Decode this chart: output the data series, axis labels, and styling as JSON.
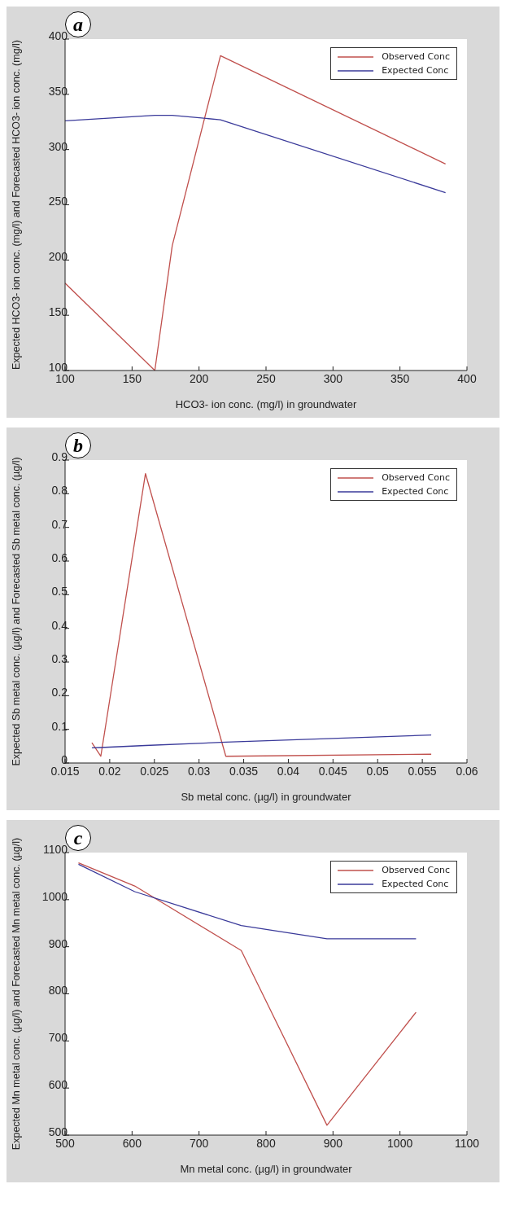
{
  "chart_data": [
    {
      "type": "line",
      "annotations": [
        "a"
      ],
      "xlabel": "HCO3- ion conc. (mg/l) in groundwater",
      "ylabel": "Expected HCO3- ion conc. (mg/l) and Forecasted HCO3- ion conc. (mg/l)",
      "xlim": [
        100,
        400
      ],
      "xticks": [
        100,
        150,
        200,
        250,
        300,
        350,
        400
      ],
      "ylim": [
        100,
        400
      ],
      "yticks": [
        100,
        150,
        200,
        250,
        300,
        350,
        400
      ],
      "legend": "top right",
      "series": [
        {
          "name": "Observed Conc",
          "color": "#c0504d",
          "x": [
            100,
            167,
            180,
            216,
            384
          ],
          "values": [
            179,
            100,
            213,
            385,
            287
          ]
        },
        {
          "name": "Expected Conc",
          "color": "#3a3a9a",
          "x": [
            100,
            167,
            180,
            216,
            384
          ],
          "values": [
            326,
            331,
            331,
            327,
            261
          ]
        }
      ]
    },
    {
      "type": "line",
      "annotations": [
        "b"
      ],
      "xlabel": "Sb metal conc. (µg/l) in groundwater",
      "ylabel": "Expected Sb metal conc. (µg/l) and Forecasted Sb metal conc. (µg/l)",
      "xlim": [
        0.015,
        0.06
      ],
      "xticks": [
        0.015,
        0.02,
        0.025,
        0.03,
        0.035,
        0.04,
        0.045,
        0.05,
        0.055,
        0.06
      ],
      "ylim": [
        0,
        0.9
      ],
      "yticks": [
        0,
        0.1,
        0.2,
        0.3,
        0.4,
        0.5,
        0.6,
        0.7,
        0.8,
        0.9
      ],
      "legend": "top right",
      "series": [
        {
          "name": "Observed Conc",
          "color": "#c0504d",
          "x": [
            0.018,
            0.019,
            0.024,
            0.033,
            0.056
          ],
          "values": [
            0.06,
            0.02,
            0.86,
            0.02,
            0.026
          ]
        },
        {
          "name": "Expected Conc",
          "color": "#3a3a9a",
          "x": [
            0.018,
            0.019,
            0.024,
            0.033,
            0.056
          ],
          "values": [
            0.045,
            0.046,
            0.052,
            0.062,
            0.083
          ]
        }
      ]
    },
    {
      "type": "line",
      "annotations": [
        "c"
      ],
      "xlabel": "Mn metal conc. (µg/l) in groundwater",
      "ylabel": "Expected Mn metal conc. (µg/l) and Forecasted Mn metal conc. (µg/l)",
      "xlim": [
        500,
        1100
      ],
      "xticks": [
        500,
        600,
        700,
        800,
        900,
        1000,
        1100
      ],
      "ylim": [
        500,
        1100
      ],
      "yticks": [
        500,
        600,
        700,
        800,
        900,
        1000,
        1100
      ],
      "legend": "top right",
      "series": [
        {
          "name": "Observed Conc",
          "color": "#c0504d",
          "x": [
            520,
            604,
            763,
            891,
            1024
          ],
          "values": [
            1078,
            1029,
            892,
            521,
            761
          ]
        },
        {
          "name": "Expected Conc",
          "color": "#3a3a9a",
          "x": [
            520,
            604,
            763,
            891,
            1024
          ],
          "values": [
            1075,
            1017,
            945,
            917,
            917
          ]
        }
      ]
    }
  ]
}
